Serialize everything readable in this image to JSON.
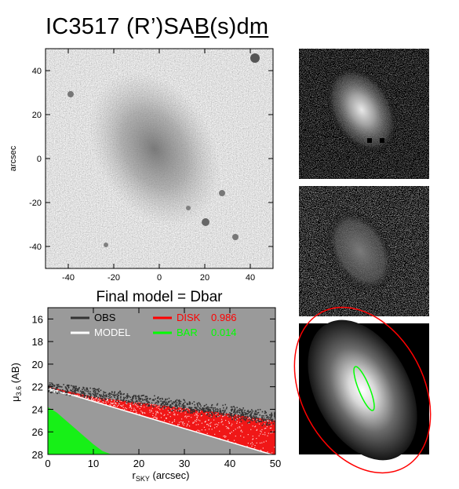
{
  "title": {
    "prefix": "IC3517   (R’)SA",
    "ul1": "B",
    "mid": "(s)d",
    "ul2": "m"
  },
  "image_panel": {
    "ylabel": "arcsec",
    "xticks": [
      "-40",
      "-20",
      "0",
      "20",
      "40"
    ],
    "yticks": [
      "40",
      "20",
      "0",
      "-20",
      "-40"
    ],
    "xrange": [
      -50,
      50
    ],
    "yrange": [
      -50,
      50
    ]
  },
  "model_caption": "Final model = Dbar",
  "chart_data": {
    "type": "scatter",
    "xlabel_main": "r",
    "xlabel_sub": "SKY",
    "xlabel_rest": " (arcsec)",
    "ylabel_main": "μ",
    "ylabel_sub": "3.6",
    "ylabel_rest": " (AB)",
    "xlim": [
      0,
      50
    ],
    "ylim": [
      28,
      15
    ],
    "xticks": [
      "0",
      "10",
      "20",
      "30",
      "40",
      "50"
    ],
    "yticks": [
      "16",
      "18",
      "20",
      "22",
      "24",
      "26",
      "28"
    ],
    "grid": false,
    "legend": [
      {
        "label": "OBS",
        "color": "#333333"
      },
      {
        "label": "MODEL",
        "color": "#ffffff"
      },
      {
        "label": "DISK",
        "value": "0.986",
        "color": "#ff0000"
      },
      {
        "label": "BAR",
        "value": "0.014",
        "color": "#00ff00"
      }
    ],
    "series": [
      {
        "name": "OBS",
        "x": [
          0,
          10,
          20,
          30,
          40,
          50
        ],
        "y": [
          22.0,
          22.5,
          23.0,
          23.5,
          24.0,
          24.6
        ]
      },
      {
        "name": "MODEL",
        "x": [
          0,
          10,
          20,
          30,
          40,
          50
        ],
        "y": [
          22.1,
          23.3,
          24.5,
          25.7,
          26.9,
          28.1
        ]
      },
      {
        "name": "DISK",
        "x": [
          0,
          10,
          20,
          30,
          40,
          50
        ],
        "y": [
          22.1,
          23.3,
          24.5,
          25.7,
          26.9,
          28.1
        ]
      },
      {
        "name": "BAR",
        "x": [
          0,
          2,
          4,
          6,
          8,
          10,
          12,
          14
        ],
        "y": [
          23.8,
          24.3,
          25.0,
          25.7,
          26.4,
          27.1,
          27.7,
          28.0
        ]
      }
    ]
  }
}
